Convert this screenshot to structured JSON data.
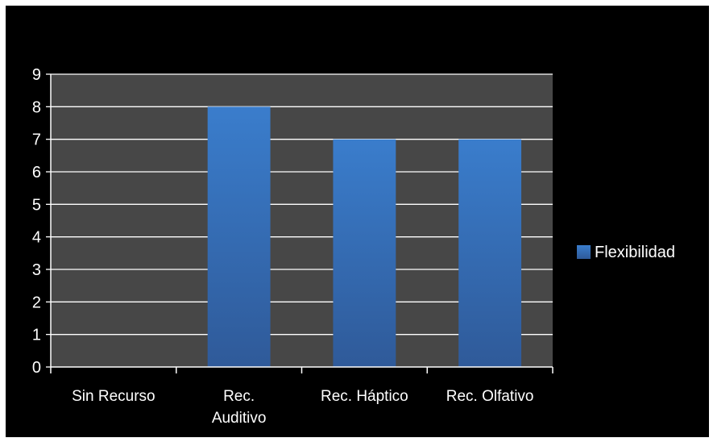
{
  "chart_data": {
    "type": "bar",
    "categories": [
      "Sin Recurso",
      "Rec. Auditivo",
      "Rec. Háptico",
      "Rec. Olfativo"
    ],
    "category_lines": [
      [
        "Sin Recurso"
      ],
      [
        "Rec.",
        "Auditivo"
      ],
      [
        "Rec. Háptico"
      ],
      [
        "Rec. Olfativo"
      ]
    ],
    "series": [
      {
        "name": "Flexibilidad",
        "values": [
          0,
          8,
          7,
          7
        ]
      }
    ],
    "ylim": [
      0,
      9
    ],
    "yticks": [
      "0",
      "1",
      "2",
      "3",
      "4",
      "5",
      "6",
      "7",
      "8",
      "9"
    ],
    "grid": true,
    "legend_position": "right",
    "colors": {
      "background": "#000000",
      "plot_area": "#474747",
      "gridline": "#ffffff",
      "bar_top": "#3a7dcc",
      "bar_bottom": "#2f5a99",
      "text": "#ffffff"
    }
  }
}
